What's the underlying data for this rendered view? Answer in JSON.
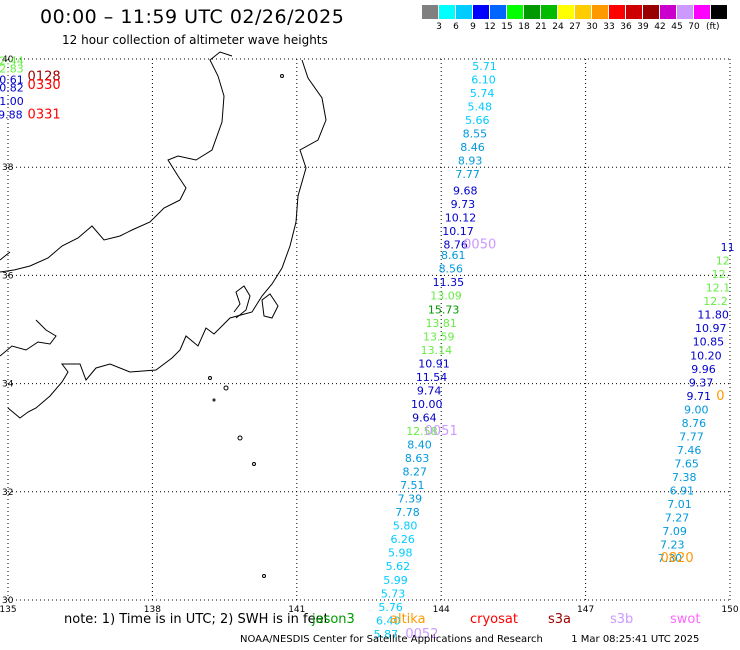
{
  "header": {
    "title": "00:00 – 11:59 UTC 02/26/2025",
    "subtitle": "12 hour collection of altimeter wave heights"
  },
  "legend": {
    "colors": [
      "#808080",
      "#00ffff",
      "#00ccff",
      "#0000ff",
      "#0066ff",
      "#00ff00",
      "#009900",
      "#00bb00",
      "#ffff00",
      "#ffcc00",
      "#ff9900",
      "#ff0000",
      "#cc0000",
      "#990000",
      "#cc00cc",
      "#cc99ff",
      "#ff00ff",
      "#000000"
    ],
    "labels": [
      "3",
      "6",
      "9",
      "12",
      "15",
      "18",
      "21",
      "24",
      "27",
      "30",
      "33",
      "36",
      "39",
      "42",
      "45",
      "70"
    ],
    "unit": "(ft)"
  },
  "map": {
    "lon_range": [
      135,
      150
    ],
    "lat_range": [
      30,
      40
    ],
    "lon_ticks": [
      "135",
      "138",
      "141",
      "144",
      "147",
      "150"
    ],
    "lat_ticks": [
      "40",
      "38",
      "36",
      "34",
      "32",
      "30"
    ],
    "grid": "dotted"
  },
  "tracks": [
    {
      "name": "track-a",
      "points": [
        {
          "lon": 144.9,
          "lat": 39.8,
          "value": "5.71",
          "color": "#00ccff"
        },
        {
          "lon": 144.88,
          "lat": 39.55,
          "value": "6.10",
          "color": "#00ccff"
        },
        {
          "lon": 144.85,
          "lat": 39.3,
          "value": "5.74",
          "color": "#00ccff"
        },
        {
          "lon": 144.8,
          "lat": 39.05,
          "value": "5.48",
          "color": "#00ccff"
        },
        {
          "lon": 144.75,
          "lat": 38.8,
          "value": "5.66",
          "color": "#00ccff"
        },
        {
          "lon": 144.7,
          "lat": 38.55,
          "value": "8.55",
          "color": "#0099dd"
        },
        {
          "lon": 144.65,
          "lat": 38.3,
          "value": "8.46",
          "color": "#0099dd"
        },
        {
          "lon": 144.6,
          "lat": 38.05,
          "value": "8.93",
          "color": "#0099dd"
        },
        {
          "lon": 144.55,
          "lat": 37.8,
          "value": "7.77",
          "color": "#0099dd"
        },
        {
          "lon": 144.5,
          "lat": 37.5,
          "value": "9.68",
          "color": "#0000cc"
        },
        {
          "lon": 144.45,
          "lat": 37.25,
          "value": "9.73",
          "color": "#0000cc"
        },
        {
          "lon": 144.4,
          "lat": 37.0,
          "value": "10.12",
          "color": "#0000cc"
        },
        {
          "lon": 144.35,
          "lat": 36.75,
          "value": "10.17",
          "color": "#0000cc"
        },
        {
          "lon": 144.3,
          "lat": 36.5,
          "value": "8.76",
          "color": "#0000cc"
        },
        {
          "lon": 144.25,
          "lat": 36.3,
          "value": "8.61",
          "color": "#0099dd"
        },
        {
          "lon": 144.2,
          "lat": 36.05,
          "value": "8.56",
          "color": "#0099dd"
        },
        {
          "lon": 144.15,
          "lat": 35.8,
          "value": "11.35",
          "color": "#0000cc"
        },
        {
          "lon": 144.1,
          "lat": 35.55,
          "value": "13.09",
          "color": "#66ee44"
        },
        {
          "lon": 144.05,
          "lat": 35.3,
          "value": "15.73",
          "color": "#009900"
        },
        {
          "lon": 144.0,
          "lat": 35.05,
          "value": "13.81",
          "color": "#66ee44"
        },
        {
          "lon": 143.95,
          "lat": 34.8,
          "value": "13.59",
          "color": "#66ee44"
        },
        {
          "lon": 143.9,
          "lat": 34.55,
          "value": "13.14",
          "color": "#66ee44"
        },
        {
          "lon": 143.85,
          "lat": 34.3,
          "value": "10.91",
          "color": "#0000cc"
        },
        {
          "lon": 143.8,
          "lat": 34.05,
          "value": "11.54",
          "color": "#0000cc"
        },
        {
          "lon": 143.75,
          "lat": 33.8,
          "value": "9.74",
          "color": "#0000cc"
        },
        {
          "lon": 143.7,
          "lat": 33.55,
          "value": "10.00",
          "color": "#0000cc"
        },
        {
          "lon": 143.65,
          "lat": 33.3,
          "value": "9.64",
          "color": "#0000cc"
        },
        {
          "lon": 143.6,
          "lat": 33.05,
          "value": "12.58",
          "color": "#66ee44"
        },
        {
          "lon": 143.55,
          "lat": 32.8,
          "value": "8.40",
          "color": "#0099dd"
        },
        {
          "lon": 143.5,
          "lat": 32.55,
          "value": "8.63",
          "color": "#0099dd"
        },
        {
          "lon": 143.45,
          "lat": 32.3,
          "value": "8.27",
          "color": "#0099dd"
        },
        {
          "lon": 143.4,
          "lat": 32.05,
          "value": "7.51",
          "color": "#0099dd"
        },
        {
          "lon": 143.35,
          "lat": 31.8,
          "value": "7.39",
          "color": "#0099dd"
        },
        {
          "lon": 143.3,
          "lat": 31.55,
          "value": "7.78",
          "color": "#0099dd"
        },
        {
          "lon": 143.25,
          "lat": 31.3,
          "value": "5.80",
          "color": "#00ccff"
        },
        {
          "lon": 143.2,
          "lat": 31.05,
          "value": "6.26",
          "color": "#00ccff"
        },
        {
          "lon": 143.15,
          "lat": 30.8,
          "value": "5.98",
          "color": "#00ccff"
        },
        {
          "lon": 143.1,
          "lat": 30.55,
          "value": "5.62",
          "color": "#00ccff"
        },
        {
          "lon": 143.05,
          "lat": 30.3,
          "value": "5.99",
          "color": "#00ccff"
        },
        {
          "lon": 143.0,
          "lat": 30.05,
          "value": "5.73",
          "color": "#00ccff"
        },
        {
          "lon": 142.95,
          "lat": 29.8,
          "value": "5.76",
          "color": "#00ccff"
        },
        {
          "lon": 142.9,
          "lat": 29.55,
          "value": "6.40",
          "color": "#00ccff"
        },
        {
          "lon": 142.85,
          "lat": 29.3,
          "value": "5.87",
          "color": "#00ccff"
        }
      ]
    },
    {
      "name": "track-b",
      "points": [
        {
          "lon": 149.95,
          "lat": 36.45,
          "value": "11",
          "color": "#0000cc"
        },
        {
          "lon": 149.85,
          "lat": 36.2,
          "value": "12",
          "color": "#66ee44"
        },
        {
          "lon": 149.8,
          "lat": 35.95,
          "value": "12.",
          "color": "#66ee44"
        },
        {
          "lon": 149.75,
          "lat": 35.7,
          "value": "12.1",
          "color": "#66ee44"
        },
        {
          "lon": 149.7,
          "lat": 35.45,
          "value": "12.2",
          "color": "#66ee44"
        },
        {
          "lon": 149.65,
          "lat": 35.2,
          "value": "11.80",
          "color": "#0000cc"
        },
        {
          "lon": 149.6,
          "lat": 34.95,
          "value": "10.97",
          "color": "#0000cc"
        },
        {
          "lon": 149.55,
          "lat": 34.7,
          "value": "10.85",
          "color": "#0000cc"
        },
        {
          "lon": 149.5,
          "lat": 34.45,
          "value": "10.20",
          "color": "#0000cc"
        },
        {
          "lon": 149.45,
          "lat": 34.2,
          "value": "9.96",
          "color": "#0000cc"
        },
        {
          "lon": 149.4,
          "lat": 33.95,
          "value": "9.37",
          "color": "#0000cc"
        },
        {
          "lon": 149.35,
          "lat": 33.7,
          "value": "9.71",
          "color": "#0000cc"
        },
        {
          "lon": 149.3,
          "lat": 33.45,
          "value": "9.00",
          "color": "#0099dd"
        },
        {
          "lon": 149.25,
          "lat": 33.2,
          "value": "8.76",
          "color": "#0099dd"
        },
        {
          "lon": 149.2,
          "lat": 32.95,
          "value": "7.77",
          "color": "#0099dd"
        },
        {
          "lon": 149.15,
          "lat": 32.7,
          "value": "7.46",
          "color": "#0099dd"
        },
        {
          "lon": 149.1,
          "lat": 32.45,
          "value": "7.65",
          "color": "#0099dd"
        },
        {
          "lon": 149.05,
          "lat": 32.2,
          "value": "7.38",
          "color": "#0099dd"
        },
        {
          "lon": 149.0,
          "lat": 31.95,
          "value": "6.91",
          "color": "#0099dd"
        },
        {
          "lon": 148.95,
          "lat": 31.7,
          "value": "7.01",
          "color": "#0099dd"
        },
        {
          "lon": 148.9,
          "lat": 31.45,
          "value": "7.27",
          "color": "#0099dd"
        },
        {
          "lon": 148.85,
          "lat": 31.2,
          "value": "7.09",
          "color": "#0099dd"
        },
        {
          "lon": 148.8,
          "lat": 30.95,
          "value": "7.23",
          "color": "#0099dd"
        },
        {
          "lon": 148.75,
          "lat": 30.7,
          "value": "7.30",
          "color": "#0099dd"
        }
      ]
    },
    {
      "name": "track-c",
      "points": [
        {
          "lon": 135.0,
          "lat": 39.9,
          "value": "12.44",
          "color": "#66ee44"
        },
        {
          "lon": 135.0,
          "lat": 39.75,
          "value": "12.83",
          "color": "#66ee44"
        },
        {
          "lon": 135.0,
          "lat": 39.55,
          "value": "10.61",
          "color": "#0000cc"
        },
        {
          "lon": 135.0,
          "lat": 39.4,
          "value": "10.82",
          "color": "#0000cc"
        },
        {
          "lon": 135.0,
          "lat": 39.15,
          "value": "11.00",
          "color": "#0000cc"
        },
        {
          "lon": 135.05,
          "lat": 38.9,
          "value": "9.88",
          "color": "#0000cc"
        }
      ]
    }
  ],
  "time_labels": [
    {
      "lon": 135.75,
      "lat": 39.6,
      "text": "0128",
      "color": "#990000"
    },
    {
      "lon": 135.75,
      "lat": 39.45,
      "text": "0330",
      "color": "#ff0000"
    },
    {
      "lon": 135.75,
      "lat": 38.9,
      "text": "0331",
      "color": "#ff0000"
    },
    {
      "lon": 144.8,
      "lat": 36.5,
      "text": "0050",
      "color": "#cc99ff"
    },
    {
      "lon": 144.0,
      "lat": 33.05,
      "text": "0051",
      "color": "#cc99ff"
    },
    {
      "lon": 143.6,
      "lat": 29.3,
      "text": "0052",
      "color": "#cc99ff"
    },
    {
      "lon": 149.8,
      "lat": 33.7,
      "text": "0",
      "color": "#ff9900"
    },
    {
      "lon": 148.9,
      "lat": 30.7,
      "text": "0820",
      "color": "#ff9900"
    }
  ],
  "footer": {
    "note": "note: 1) Time is in UTC; 2) SWH is in feet",
    "missions": [
      {
        "name": "jason3",
        "color": "#009900"
      },
      {
        "name": "altika",
        "color": "#ff9900"
      },
      {
        "name": "cryosat",
        "color": "#ff0000"
      },
      {
        "name": "s3a",
        "color": "#990000"
      },
      {
        "name": "s3b",
        "color": "#cc99ff"
      },
      {
        "name": "swot",
        "color": "#ff66ff"
      }
    ],
    "credit": "NOAA/NESDIS Center for Satellite Applications and Research",
    "generated": "1 Mar 08:25:41 UTC 2025"
  }
}
